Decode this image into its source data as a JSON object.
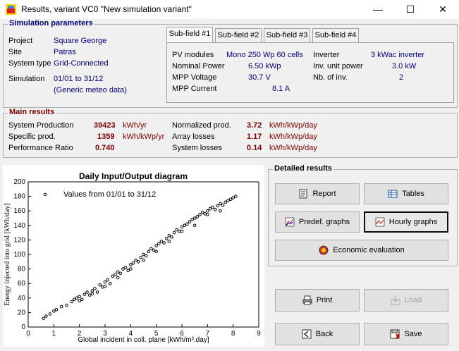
{
  "window": {
    "title": "Results, variant VC0  \"New simulation variant\"",
    "minimize": "—",
    "maximize": "☐",
    "close": "✕"
  },
  "sim_params": {
    "title": "Simulation parameters",
    "project_label": "Project",
    "project_value": "Square George",
    "site_label": "Site",
    "site_value": "Patras",
    "systype_label": "System type",
    "systype_value": "Grid-Connected",
    "simulation_label": "Simulation",
    "simulation_value": "01/01 to 31/12",
    "meteo_value": "(Generic meteo data)"
  },
  "tabs": [
    "Sub-field #1",
    "Sub-field #2",
    "Sub-field #3",
    "Sub-field #4"
  ],
  "subfield": {
    "pv_modules_label": "PV modules",
    "pv_modules_value": "Mono 250 Wp  60 cells",
    "nominal_power_label": "Nominal Power",
    "nominal_power_value": "6.50 kWp",
    "mpp_voltage_label": "MPP Voltage",
    "mpp_voltage_value": "30.7 V",
    "mpp_current_label": "MPP Current",
    "mpp_current_value": "8.1  A",
    "inverter_label": "Inverter",
    "inverter_value": "3 kWac inverter",
    "inv_unit_power_label": "Inv. unit power",
    "inv_unit_power_value": "3.0  kW",
    "nb_inv_label": "Nb. of inv.",
    "nb_inv_value": "2"
  },
  "main_results": {
    "title": "Main results",
    "system_production_label": "System Production",
    "system_production_value": "39423",
    "system_production_unit": "kWh/yr",
    "specific_prod_label": "Specific prod.",
    "specific_prod_value": "1359",
    "specific_prod_unit": "kWh/kWp/yr",
    "performance_ratio_label": "Performance Ratio",
    "performance_ratio_value": "0.740",
    "normalized_prod_label": "Normalized prod.",
    "normalized_prod_value": "3.72",
    "normalized_prod_unit": "kWh/kWp/day",
    "array_losses_label": "Array losses",
    "array_losses_value": "1.17",
    "array_losses_unit": "kWh/kWp/day",
    "system_losses_label": "System losses",
    "system_losses_value": "0.14",
    "system_losses_unit": "kWh/kWp/day"
  },
  "detailed": {
    "title": "Detailed results",
    "report": "Report",
    "tables": "Tables",
    "predef_graphs": "Predef. graphs",
    "hourly_graphs": "Hourly graphs",
    "economic_evaluation": "Economic evaluation"
  },
  "actions": {
    "print": "Print",
    "load": "Load",
    "back": "Back",
    "save": "Save"
  },
  "chart_data": {
    "type": "scatter",
    "title": "Daily Input/Output diagram",
    "legend": "Values from 01/01 to 31/12",
    "legend_position": "top-left",
    "xlabel": "Global incident in coll. plane [kWh/m².day]",
    "ylabel": "Energy injected into grid [kWh/day]",
    "xlim": [
      0,
      9
    ],
    "ylim": [
      0,
      200
    ],
    "xticks": [
      "0",
      "1",
      "2",
      "3",
      "4",
      "5",
      "6",
      "7",
      "8",
      "9"
    ],
    "yticks": [
      "0",
      "20",
      "40",
      "60",
      "80",
      "100",
      "120",
      "140",
      "160",
      "180",
      "200"
    ],
    "grid": false,
    "points": [
      [
        0.6,
        12
      ],
      [
        0.7,
        15
      ],
      [
        0.85,
        18
      ],
      [
        1.0,
        22
      ],
      [
        1.1,
        24
      ],
      [
        1.3,
        28
      ],
      [
        1.5,
        30
      ],
      [
        1.7,
        35
      ],
      [
        1.8,
        38
      ],
      [
        1.9,
        40
      ],
      [
        2.0,
        42
      ],
      [
        2.1,
        38
      ],
      [
        2.2,
        45
      ],
      [
        2.3,
        48
      ],
      [
        2.4,
        44
      ],
      [
        2.5,
        50
      ],
      [
        2.6,
        53
      ],
      [
        2.7,
        48
      ],
      [
        2.8,
        58
      ],
      [
        2.9,
        55
      ],
      [
        3.0,
        62
      ],
      [
        3.1,
        65
      ],
      [
        3.2,
        60
      ],
      [
        3.3,
        70
      ],
      [
        3.4,
        72
      ],
      [
        3.5,
        76
      ],
      [
        3.6,
        74
      ],
      [
        3.7,
        80
      ],
      [
        3.8,
        82
      ],
      [
        3.9,
        78
      ],
      [
        4.0,
        86
      ],
      [
        4.1,
        88
      ],
      [
        4.2,
        92
      ],
      [
        4.3,
        90
      ],
      [
        4.4,
        96
      ],
      [
        4.5,
        100
      ],
      [
        4.6,
        98
      ],
      [
        4.7,
        104
      ],
      [
        4.8,
        108
      ],
      [
        4.9,
        106
      ],
      [
        5.0,
        112
      ],
      [
        5.1,
        115
      ],
      [
        5.2,
        118
      ],
      [
        5.3,
        116
      ],
      [
        5.4,
        122
      ],
      [
        5.5,
        126
      ],
      [
        5.6,
        124
      ],
      [
        5.7,
        130
      ],
      [
        5.8,
        134
      ],
      [
        5.9,
        132
      ],
      [
        6.0,
        138
      ],
      [
        6.1,
        140
      ],
      [
        6.2,
        142
      ],
      [
        6.3,
        145
      ],
      [
        6.4,
        148
      ],
      [
        6.5,
        150
      ],
      [
        6.6,
        152
      ],
      [
        6.7,
        155
      ],
      [
        6.8,
        158
      ],
      [
        6.9,
        156
      ],
      [
        7.0,
        160
      ],
      [
        7.1,
        163
      ],
      [
        7.2,
        165
      ],
      [
        7.3,
        162
      ],
      [
        7.4,
        167
      ],
      [
        7.5,
        170
      ],
      [
        7.6,
        168
      ],
      [
        7.7,
        172
      ],
      [
        7.8,
        174
      ],
      [
        7.9,
        176
      ],
      [
        8.0,
        178
      ],
      [
        8.1,
        180
      ],
      [
        2.0,
        36
      ],
      [
        3.0,
        56
      ],
      [
        4.0,
        80
      ],
      [
        5.0,
        104
      ],
      [
        6.0,
        132
      ],
      [
        7.0,
        155
      ],
      [
        7.5,
        160
      ],
      [
        6.5,
        140
      ],
      [
        5.5,
        118
      ],
      [
        4.5,
        92
      ],
      [
        3.5,
        68
      ],
      [
        2.5,
        46
      ]
    ]
  },
  "colors": {
    "navy": "#00007f",
    "maroon": "#7f0000",
    "panel": "#f0f0f0"
  }
}
